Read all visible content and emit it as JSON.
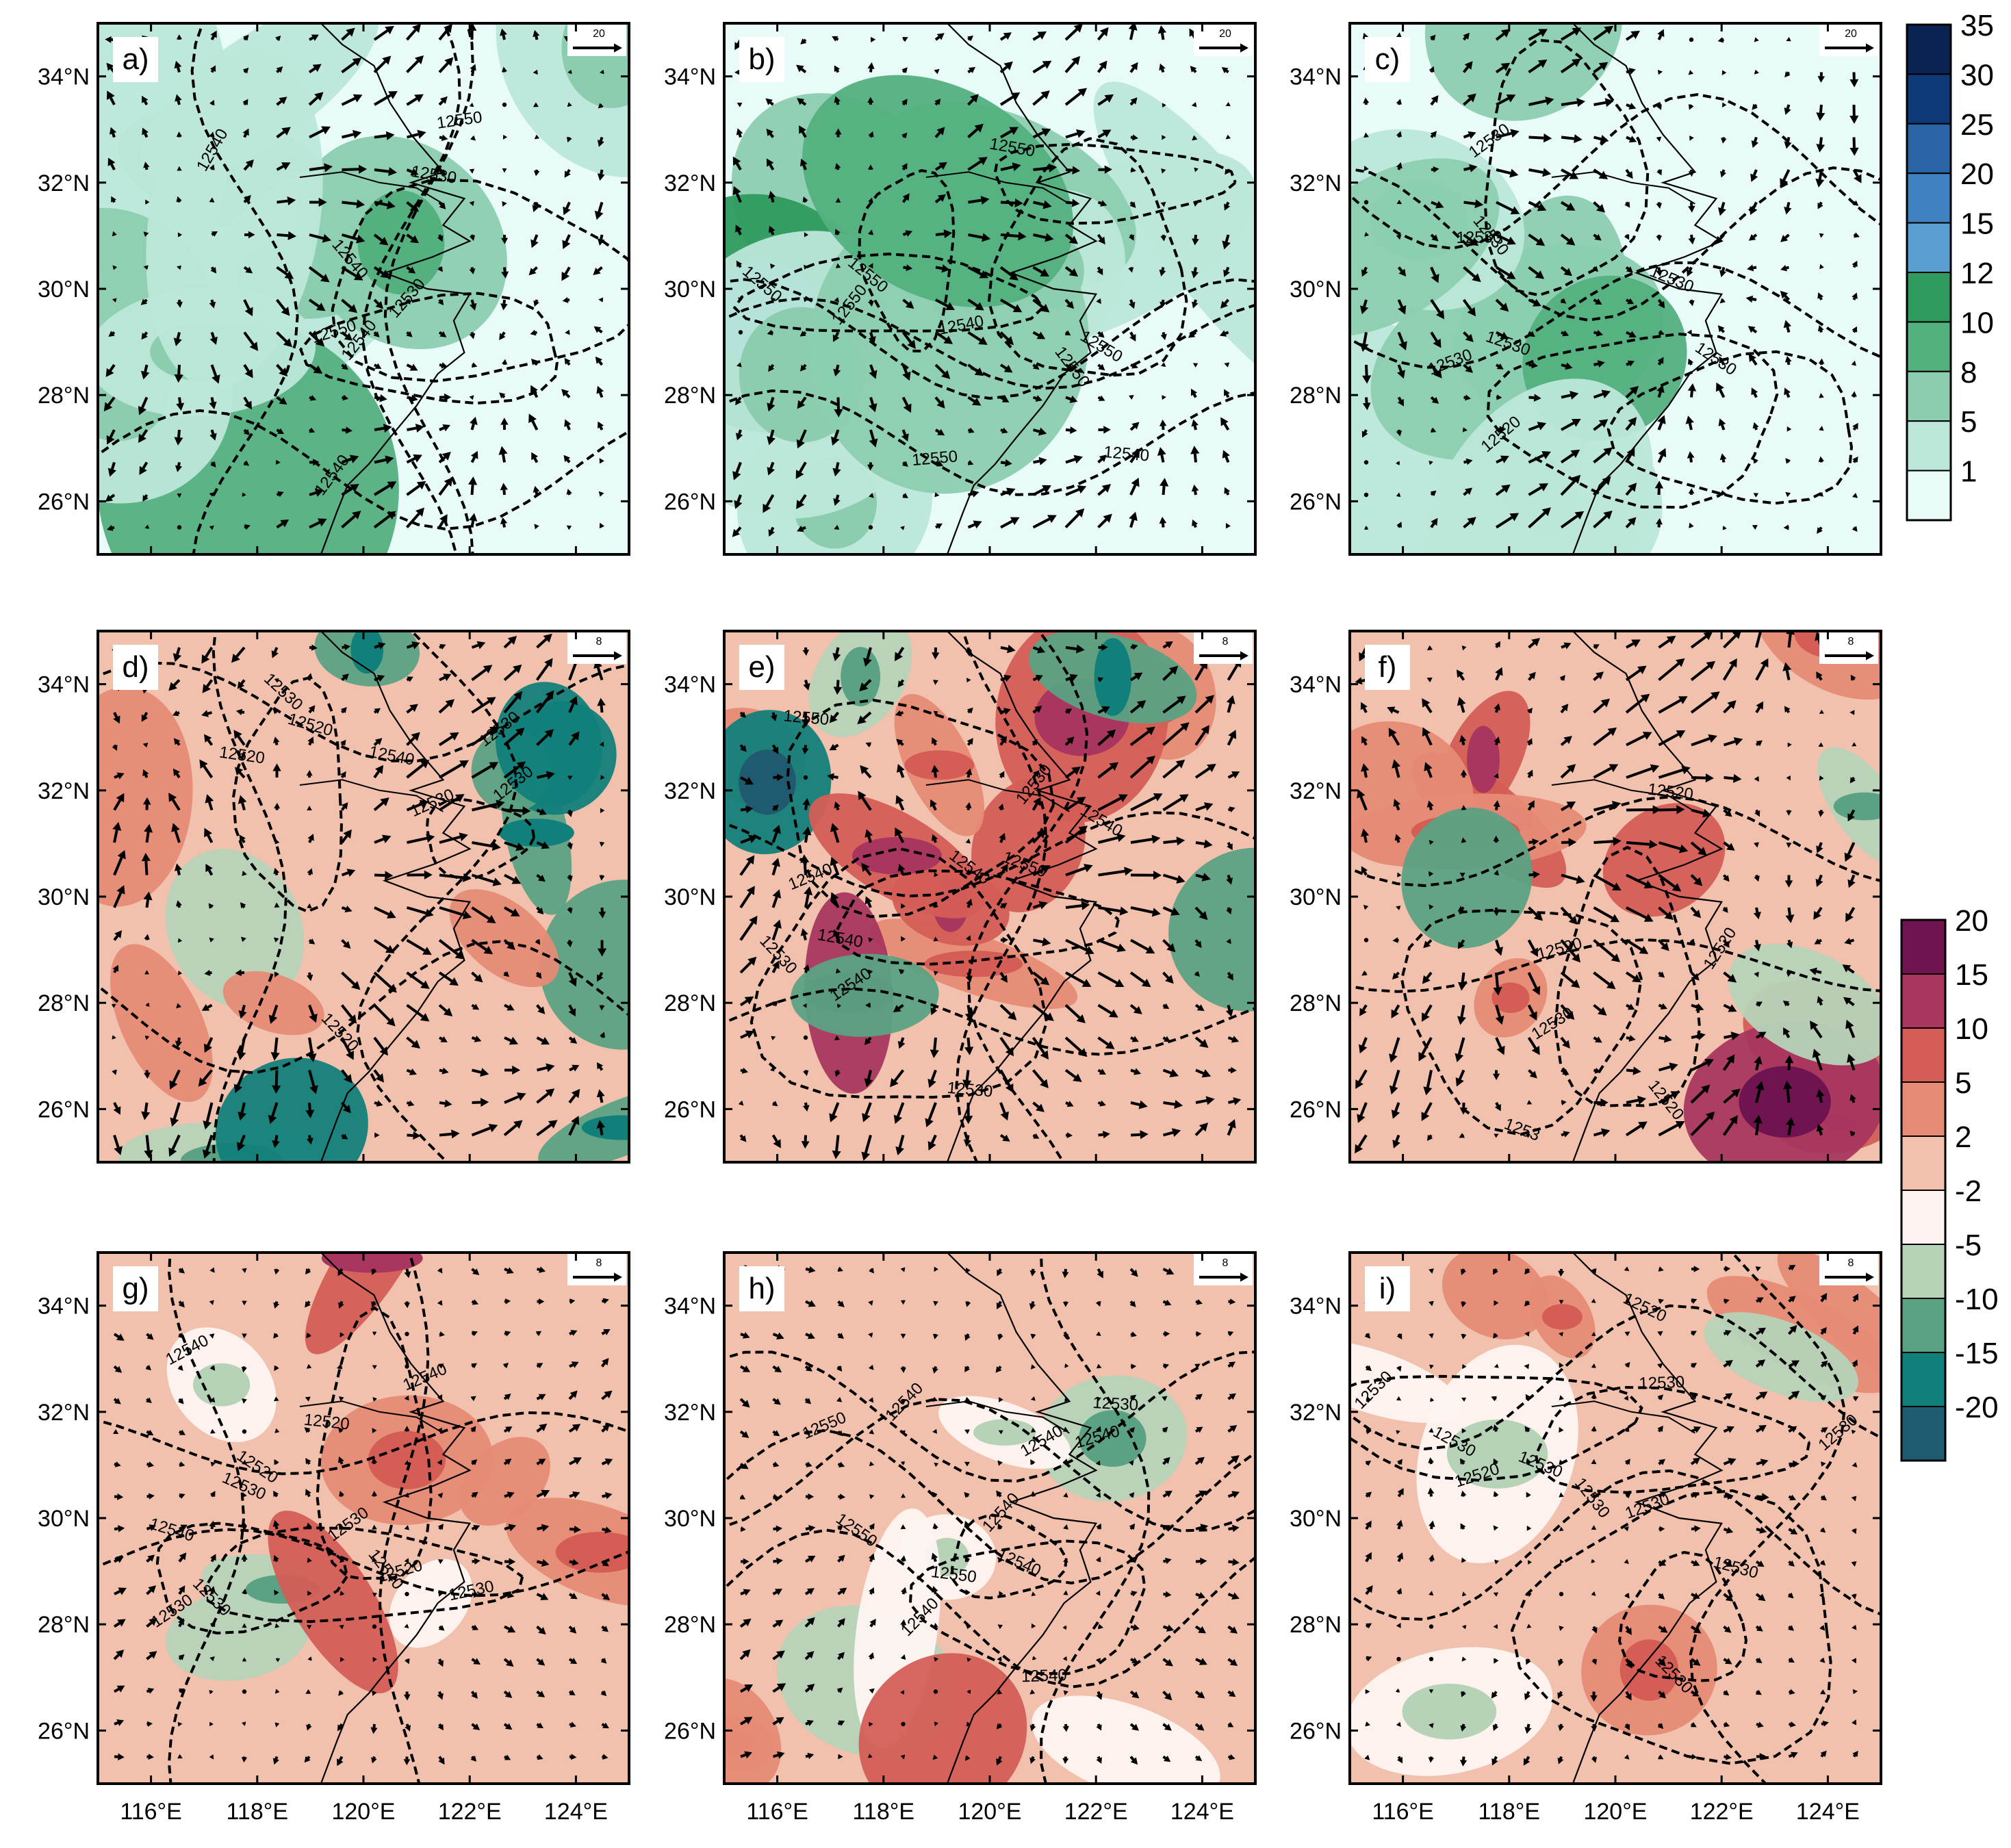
{
  "lon_ticks": [
    "116°E",
    "118°E",
    "120°E",
    "122°E",
    "124°E"
  ],
  "lat_ticks": [
    "34°N",
    "32°N",
    "30°N",
    "28°N",
    "26°N"
  ],
  "extent": {
    "lon": [
      115,
      125
    ],
    "lat": [
      25,
      35
    ]
  },
  "colorbars": [
    {
      "id": "cb-top",
      "labels": [
        "35",
        "30",
        "25",
        "20",
        "15",
        "12",
        "10",
        "8",
        "5",
        "1"
      ],
      "colors": [
        "#0a2451",
        "#0f3a7a",
        "#2a64a6",
        "#3f82bf",
        "#5a9fd1",
        "#2e9a5e",
        "#54b07f",
        "#8ccdb0",
        "#bce7d9",
        "#e8fbf8"
      ]
    },
    {
      "id": "cb-bottom",
      "labels": [
        "20",
        "15",
        "10",
        "5",
        "2",
        "-2",
        "-5",
        "-10",
        "-15",
        "-20"
      ],
      "colors": [
        "#6f1450",
        "#a8365f",
        "#d45e56",
        "#e68b76",
        "#f2c1ad",
        "#fdf4f1",
        "#b6d3b8",
        "#5aa283",
        "#12807a",
        "#1f5a70"
      ]
    }
  ],
  "panels": [
    {
      "label": "a)",
      "ref": "20",
      "row": 0,
      "col": 0,
      "seed": 11,
      "contours": [
        "12550",
        "12550",
        "12540",
        "12540",
        "12540",
        "12530",
        "12530",
        "12540"
      ]
    },
    {
      "label": "b)",
      "ref": "20",
      "row": 0,
      "col": 1,
      "seed": 23,
      "contours": [
        "12540",
        "12550",
        "12550",
        "12550",
        "12550",
        "12550",
        "12550",
        "12550",
        "12540"
      ]
    },
    {
      "label": "c)",
      "ref": "20",
      "row": 0,
      "col": 2,
      "seed": 37,
      "contours": [
        "12530",
        "12530",
        "12530",
        "12530",
        "12520",
        "12530",
        "12530",
        "12530"
      ]
    },
    {
      "label": "d)",
      "ref": "8",
      "row": 1,
      "col": 0,
      "seed": 41,
      "contours": [
        "12530",
        "12520",
        "12530",
        "12520",
        "12520",
        "12530",
        "12530",
        "12540"
      ]
    },
    {
      "label": "e)",
      "ref": "8",
      "row": 1,
      "col": 1,
      "seed": 53,
      "contours": [
        "12530",
        "12540",
        "12550",
        "12540",
        "12550",
        "12540",
        "12530",
        "12530",
        "12540",
        "12540"
      ]
    },
    {
      "label": "f)",
      "ref": "8",
      "row": 1,
      "col": 2,
      "seed": 67,
      "contours": [
        "12520",
        "12520",
        "12520",
        "1253",
        "12530",
        "12520"
      ]
    },
    {
      "label": "g)",
      "ref": "8",
      "row": 2,
      "col": 0,
      "seed": 71,
      "contours": [
        "12520",
        "12530",
        "12540",
        "12540",
        "12530",
        "12530",
        "12520",
        "12520",
        "12530",
        "12530",
        "12540",
        "12540"
      ]
    },
    {
      "label": "h)",
      "ref": "8",
      "row": 2,
      "col": 1,
      "seed": 83,
      "contours": [
        "12550",
        "12550",
        "12540",
        "12550",
        "12540",
        "12540",
        "12530",
        "12540",
        "12540",
        "12540",
        "12540"
      ]
    },
    {
      "label": "i)",
      "ref": "8",
      "row": 2,
      "col": 2,
      "seed": 97,
      "contours": [
        "12530",
        "12530",
        "12530",
        "12520",
        "12530",
        "12530",
        "12530",
        "12520",
        "12530",
        "12530",
        "12530"
      ]
    }
  ]
}
